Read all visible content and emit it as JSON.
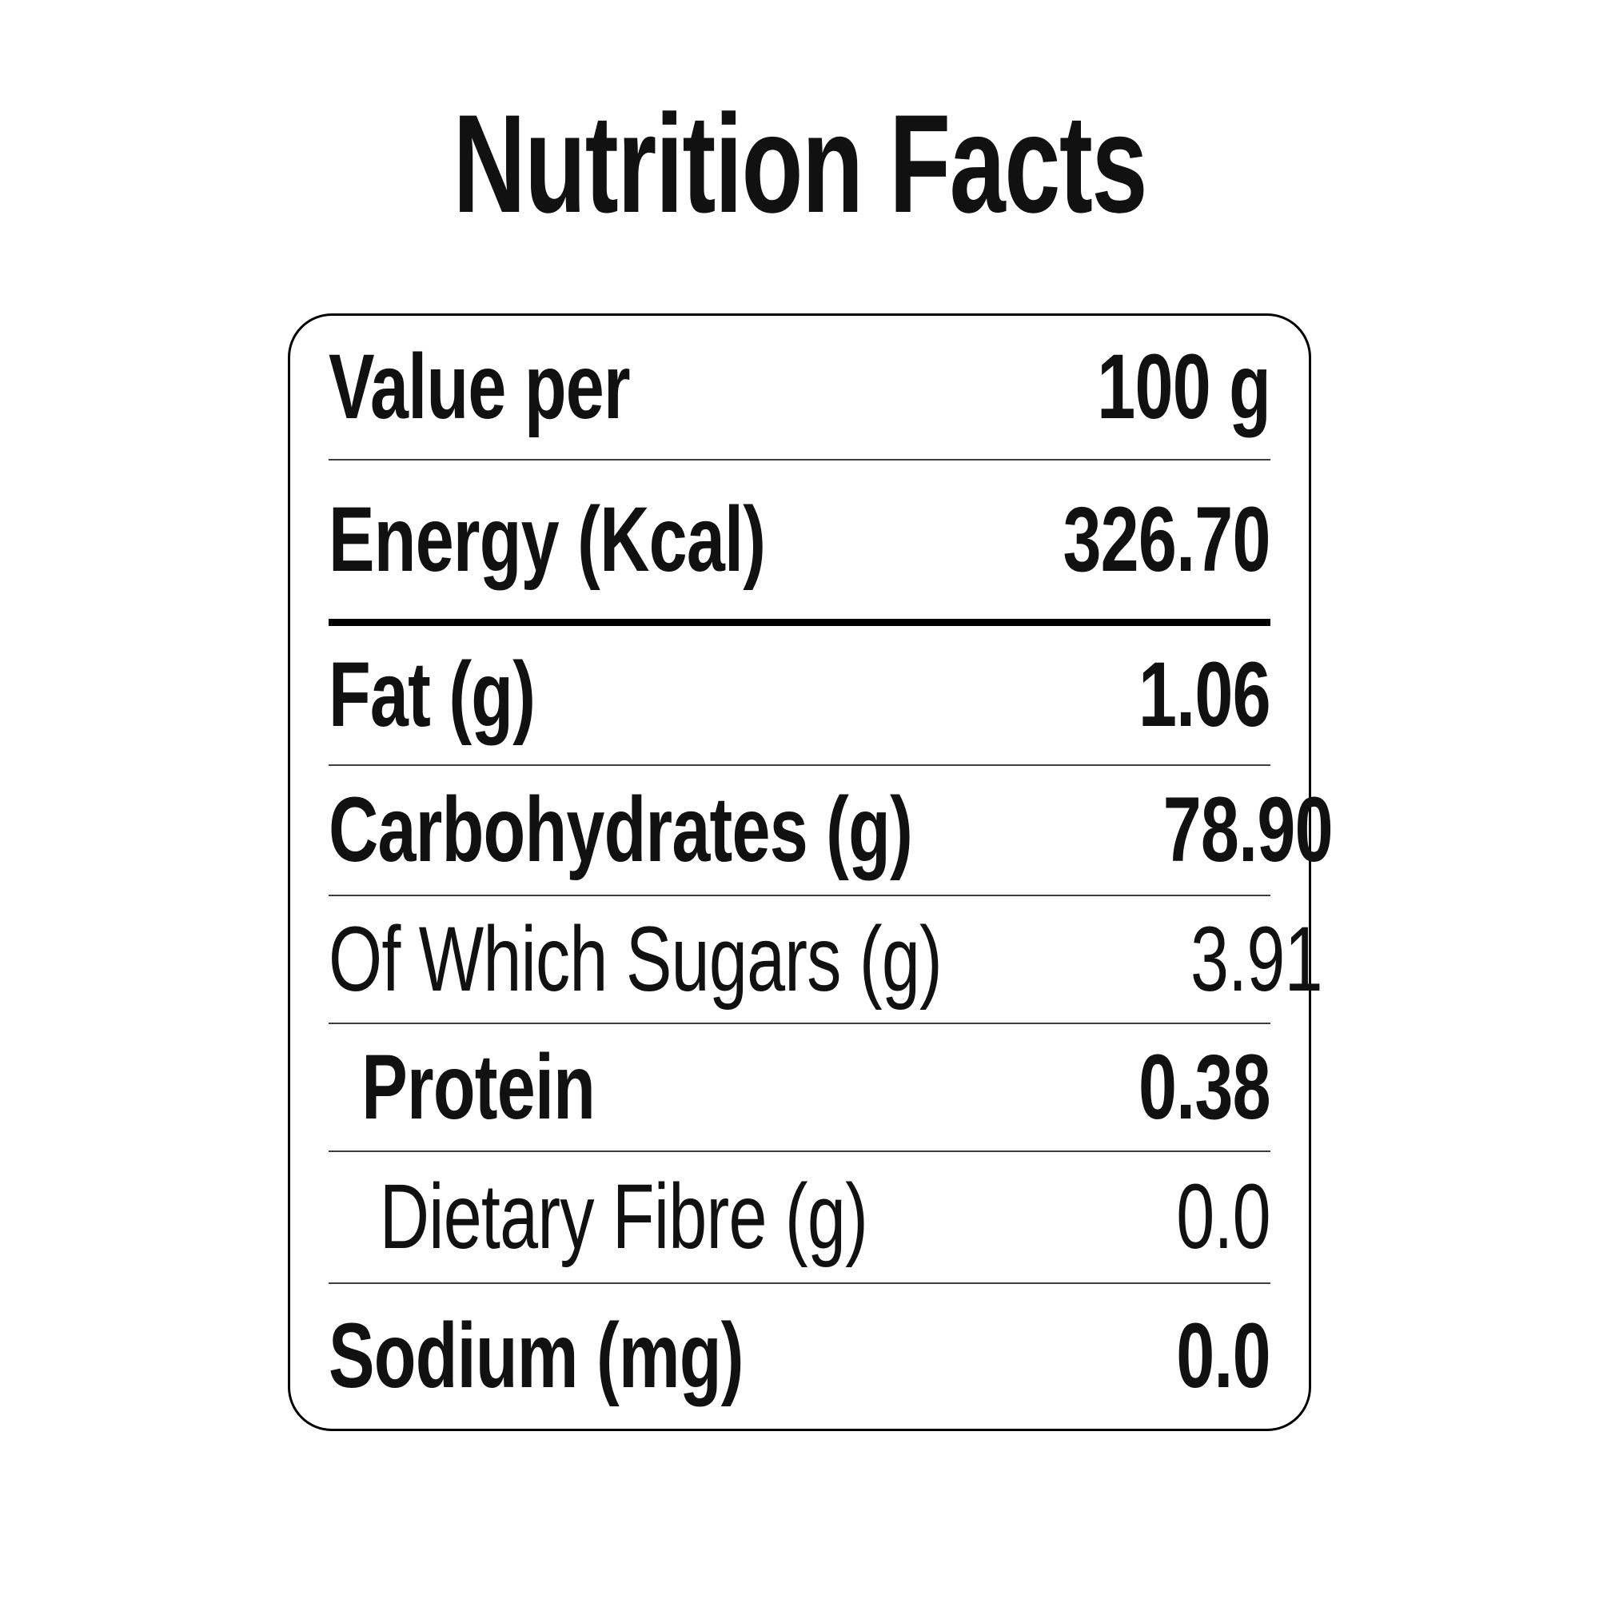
{
  "title": "Nutrition Facts",
  "colors": {
    "text": "#111111",
    "box_border": "#000000",
    "thin_divider": "#3f3f3f",
    "thick_divider": "#000000",
    "background": "#ffffff"
  },
  "table": {
    "rows": [
      {
        "label": "Value per",
        "value": "100 g",
        "label_bold": true,
        "value_bold": true,
        "indent": 0,
        "divider_after": "thin"
      },
      {
        "label": "Energy (Kcal)",
        "value": "326.70",
        "label_bold": true,
        "value_bold": true,
        "indent": 0,
        "divider_after": "thick"
      },
      {
        "label": "Fat (g)",
        "value": "1.06",
        "label_bold": true,
        "value_bold": true,
        "indent": 0,
        "divider_after": "thin"
      },
      {
        "label": "Carbohydrates (g)",
        "value": "78.90",
        "label_bold": true,
        "value_bold": true,
        "indent": 0,
        "divider_after": "thin"
      },
      {
        "label": "Of Which Sugars (g)",
        "value": "3.91",
        "label_bold": false,
        "value_bold": false,
        "indent": 0,
        "divider_after": "thin"
      },
      {
        "label": "Protein",
        "value": "0.38",
        "label_bold": true,
        "value_bold": true,
        "indent": 1,
        "divider_after": "thin"
      },
      {
        "label": "Dietary Fibre (g)",
        "value": "0.0",
        "label_bold": false,
        "value_bold": false,
        "indent": 2,
        "divider_after": "thin"
      },
      {
        "label": "Sodium (mg)",
        "value": "0.0",
        "label_bold": true,
        "value_bold": true,
        "indent": 0,
        "divider_after": "none"
      }
    ]
  }
}
